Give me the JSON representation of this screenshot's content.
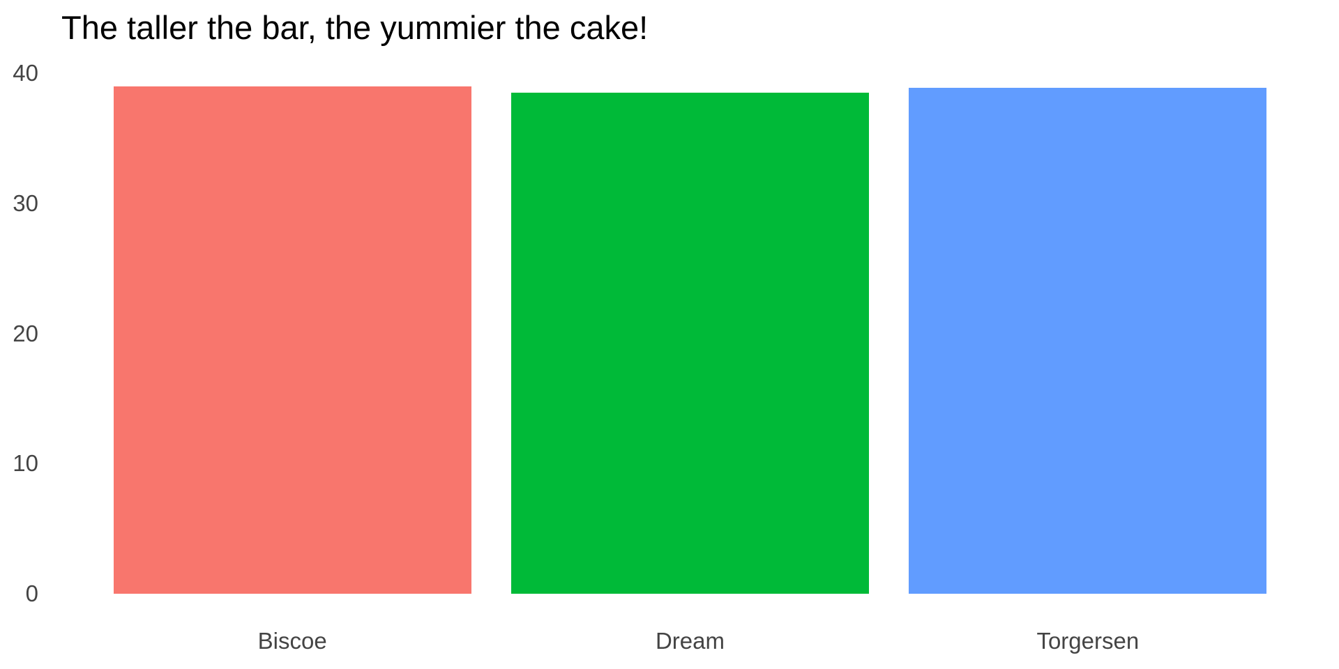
{
  "chart_data": {
    "type": "bar",
    "title": "The taller the bar, the yummier the cake!",
    "categories": [
      "Biscoe",
      "Dream",
      "Torgersen"
    ],
    "values": [
      39.0,
      38.5,
      38.9
    ],
    "bar_colors": [
      "#F8766D",
      "#00BA38",
      "#619CFF"
    ],
    "xlabel": "",
    "ylabel": "",
    "ylim": [
      0,
      40
    ],
    "yticks": [
      0,
      10,
      20,
      30,
      40
    ],
    "grid": false,
    "legend_position": "none",
    "background_color": "#ffffff",
    "title_color": "#000000",
    "tick_label_color": "#444444"
  }
}
